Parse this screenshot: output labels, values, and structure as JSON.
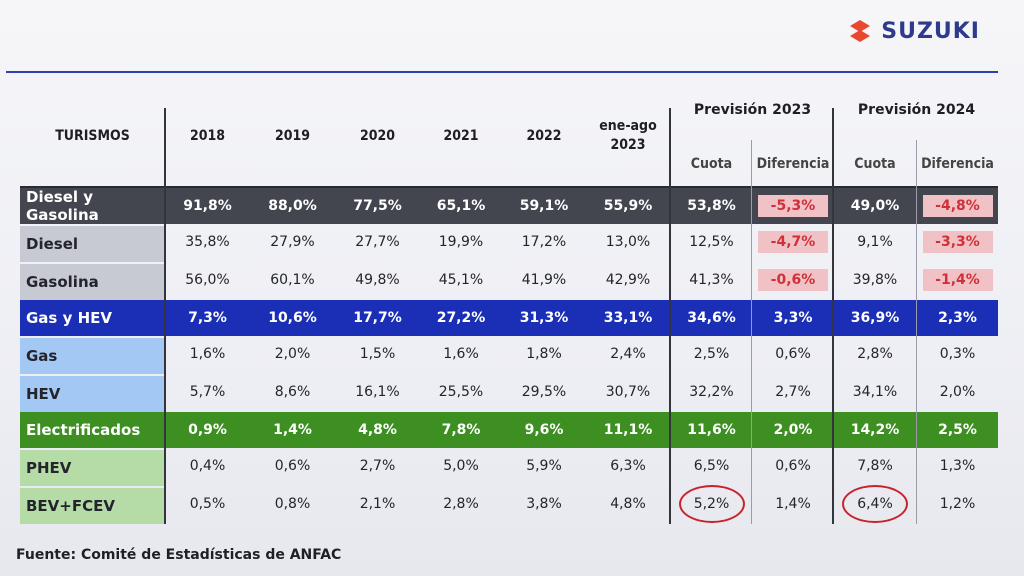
{
  "brand": {
    "name": "SUZUKI",
    "colors": {
      "logo_s": "#e8482f",
      "wordmark": "#2e3a8c"
    }
  },
  "headers": {
    "turismos": "TURISMOS",
    "years": [
      "2018",
      "2019",
      "2020",
      "2021",
      "2022"
    ],
    "ytd_line1": "ene-ago",
    "ytd_line2": "2023",
    "prev2023": "Previsión 2023",
    "prev2024": "Previsión 2024",
    "cuota": "Cuota",
    "diferencia": "Diferencia"
  },
  "rows": [
    {
      "label": "Diesel y Gasolina",
      "style": "band-dark",
      "values": [
        "91,8%",
        "88,0%",
        "77,5%",
        "65,1%",
        "59,1%",
        "55,9%",
        "53,8%",
        "-5,3%",
        "49,0%",
        "-4,8%"
      ]
    },
    {
      "label": "Diesel",
      "style": "sub-gray",
      "values": [
        "35,8%",
        "27,9%",
        "27,7%",
        "19,9%",
        "17,2%",
        "13,0%",
        "12,5%",
        "-4,7%",
        "9,1%",
        "-3,3%"
      ]
    },
    {
      "label": "Gasolina",
      "style": "sub-gray",
      "values": [
        "56,0%",
        "60,1%",
        "49,8%",
        "45,1%",
        "41,9%",
        "42,9%",
        "41,3%",
        "-0,6%",
        "39,8%",
        "-1,4%"
      ]
    },
    {
      "label": "Gas y HEV",
      "style": "band-blue",
      "values": [
        "7,3%",
        "10,6%",
        "17,7%",
        "27,2%",
        "31,3%",
        "33,1%",
        "34,6%",
        "3,3%",
        "36,9%",
        "2,3%"
      ]
    },
    {
      "label": "Gas",
      "style": "sub-blue",
      "values": [
        "1,6%",
        "2,0%",
        "1,5%",
        "1,6%",
        "1,8%",
        "2,4%",
        "2,5%",
        "0,6%",
        "2,8%",
        "0,3%"
      ]
    },
    {
      "label": "HEV",
      "style": "sub-blue",
      "values": [
        "5,7%",
        "8,6%",
        "16,1%",
        "25,5%",
        "29,5%",
        "30,7%",
        "32,2%",
        "2,7%",
        "34,1%",
        "2,0%"
      ]
    },
    {
      "label": "Electrificados",
      "style": "band-green",
      "values": [
        "0,9%",
        "1,4%",
        "4,8%",
        "7,8%",
        "9,6%",
        "11,1%",
        "11,6%",
        "2,0%",
        "14,2%",
        "2,5%"
      ]
    },
    {
      "label": "PHEV",
      "style": "sub-green",
      "values": [
        "0,4%",
        "0,6%",
        "2,7%",
        "5,0%",
        "5,9%",
        "6,3%",
        "6,5%",
        "0,6%",
        "7,8%",
        "1,3%"
      ]
    },
    {
      "label": "BEV+FCEV",
      "style": "sub-green",
      "values": [
        "0,5%",
        "0,8%",
        "2,1%",
        "2,8%",
        "3,8%",
        "4,8%",
        "5,2%",
        "1,4%",
        "6,4%",
        "1,2%"
      ]
    }
  ],
  "source": "Fuente: Comité de Estadísticas de ANFAC"
}
